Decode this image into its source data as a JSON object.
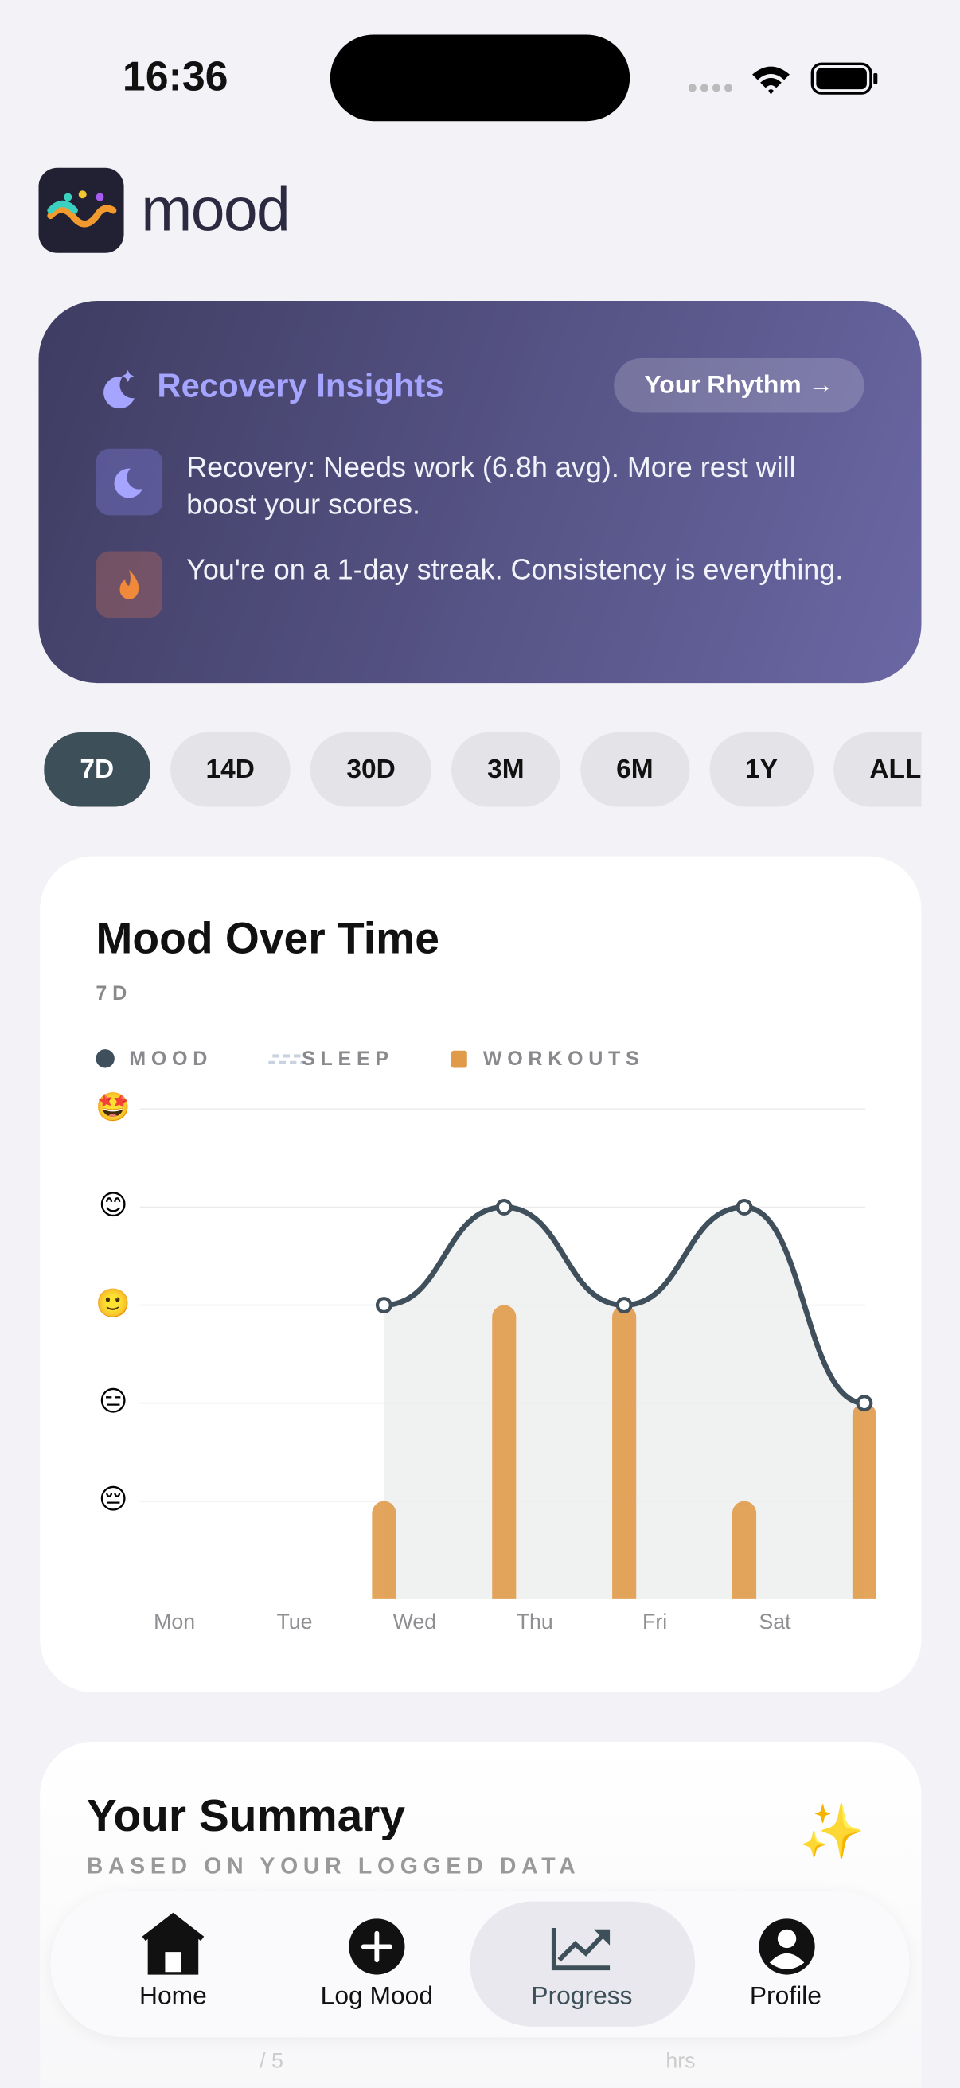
{
  "status_bar": {
    "time": "16:36"
  },
  "app": {
    "name": "mood"
  },
  "insights": {
    "title": "Recovery Insights",
    "button": "Your Rhythm →",
    "items": [
      "Recovery: Needs work (6.8h avg). More rest will boost your scores.",
      "You're on a 1-day streak. Consistency is everything."
    ]
  },
  "periods": [
    "7D",
    "14D",
    "30D",
    "3M",
    "6M",
    "1Y",
    "ALL"
  ],
  "selected_period": "7D",
  "chart_data": {
    "type": "line",
    "title": "Mood Over Time",
    "subtitle": "7D",
    "categories": [
      "Mon",
      "Tue",
      "Wed",
      "Thu",
      "Fri",
      "Sat",
      null
    ],
    "series": [
      {
        "name": "MOOD",
        "color": "#3f4f5c",
        "values": [
          null,
          null,
          3,
          4,
          3,
          4,
          2
        ]
      },
      {
        "name": "SLEEP",
        "color": "#c9d3df",
        "values": [
          null,
          null,
          null,
          null,
          null,
          null,
          null
        ]
      },
      {
        "name": "WORKOUTS",
        "color": "#e09a4a",
        "type": "bar",
        "values": [
          null,
          null,
          1,
          3,
          3,
          1,
          2
        ]
      }
    ],
    "ylim": [
      0,
      5
    ],
    "yticks": [
      {
        "value": 1,
        "label": "😔"
      },
      {
        "value": 2,
        "label": "😑"
      },
      {
        "value": 3,
        "label": "🙂"
      },
      {
        "value": 4,
        "label": "😊"
      },
      {
        "value": 5,
        "label": "🤩"
      }
    ],
    "grid": true
  },
  "summary": {
    "title": "Your Summary",
    "subtitle": "BASED ON YOUR LOGGED DATA",
    "partial": [
      "/ 5",
      "hrs"
    ]
  },
  "tabs": [
    "Home",
    "Log Mood",
    "Progress",
    "Profile"
  ],
  "active_tab": "Progress"
}
